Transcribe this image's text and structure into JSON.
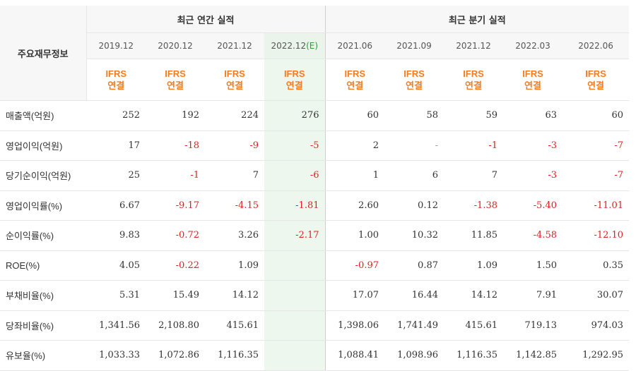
{
  "header": {
    "corner_label": "주요재무정보",
    "annual_group": "최근 연간 실적",
    "quarterly_group": "최근 분기 실적"
  },
  "periods": [
    {
      "label": "2019.12",
      "group": "annual"
    },
    {
      "label": "2020.12",
      "group": "annual"
    },
    {
      "label": "2021.12",
      "group": "annual"
    },
    {
      "label": "2022.12",
      "estimate_mark": "(E)",
      "group": "annual"
    },
    {
      "label": "2021.06",
      "group": "quarterly"
    },
    {
      "label": "2021.09",
      "group": "quarterly"
    },
    {
      "label": "2021.12",
      "group": "quarterly"
    },
    {
      "label": "2022.03",
      "group": "quarterly"
    },
    {
      "label": "2022.06",
      "group": "quarterly"
    }
  ],
  "badge": {
    "line1": "IFRS",
    "line2": "연결"
  },
  "colors": {
    "badge": "#f47b20",
    "negative": "#e02020",
    "estimate_bg": "#eef7ee",
    "estimate_mark": "#2e9b3f"
  },
  "rows": [
    {
      "label": "매출액(억원)",
      "values": [
        "252",
        "192",
        "224",
        "276",
        "60",
        "58",
        "59",
        "63",
        "60"
      ]
    },
    {
      "label": "영업이익(억원)",
      "values": [
        "17",
        "-18",
        "-9",
        "-5",
        "2",
        "-",
        "-1",
        "-3",
        "-7"
      ]
    },
    {
      "label": "당기순이익(억원)",
      "values": [
        "25",
        "-1",
        "7",
        "-6",
        "1",
        "6",
        "7",
        "-3",
        "-7"
      ]
    },
    {
      "label": "영업이익률(%)",
      "values": [
        "6.67",
        "-9.17",
        "-4.15",
        "-1.81",
        "2.60",
        "0.12",
        "-1.38",
        "-5.40",
        "-11.01"
      ]
    },
    {
      "label": "순이익률(%)",
      "values": [
        "9.83",
        "-0.72",
        "3.26",
        "-2.17",
        "1.00",
        "10.32",
        "11.85",
        "-4.58",
        "-12.10"
      ]
    },
    {
      "label": "ROE(%)",
      "values": [
        "4.05",
        "-0.22",
        "1.09",
        "",
        "-0.97",
        "0.87",
        "1.09",
        "1.50",
        "0.35"
      ]
    },
    {
      "label": "부채비율(%)",
      "values": [
        "5.31",
        "15.49",
        "14.12",
        "",
        "17.07",
        "16.44",
        "14.12",
        "7.91",
        "30.07"
      ]
    },
    {
      "label": "당좌비율(%)",
      "values": [
        "1,341.56",
        "2,108.80",
        "415.61",
        "",
        "1,398.06",
        "1,741.49",
        "415.61",
        "719.13",
        "974.03"
      ]
    },
    {
      "label": "유보율(%)",
      "values": [
        "1,033.33",
        "1,072.86",
        "1,116.35",
        "",
        "1,088.41",
        "1,098.96",
        "1,116.35",
        "1,142.85",
        "1,292.95"
      ]
    }
  ]
}
